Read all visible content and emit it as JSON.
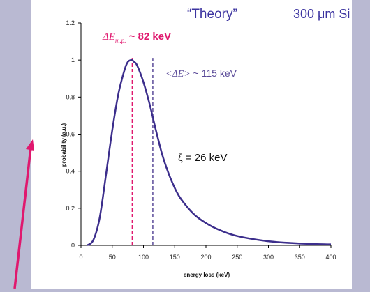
{
  "chart_data": {
    "type": "line",
    "title_left": "“Theory”",
    "title_right": "300 μm Si",
    "xlabel": "energy loss (keV)",
    "ylabel": "probability (a.u.)",
    "xlim": [
      0,
      400
    ],
    "ylim": [
      0,
      1.2
    ],
    "x_ticks": [
      0,
      50,
      100,
      150,
      200,
      250,
      300,
      350,
      400
    ],
    "y_ticks": [
      0,
      0.2,
      0.4,
      0.6,
      0.8,
      1,
      1.2
    ],
    "grid": false,
    "series": [
      {
        "color": "#3c2e8c",
        "x": [
          10,
          20,
          30,
          40,
          50,
          60,
          70,
          75,
          80,
          82,
          85,
          90,
          100,
          110,
          120,
          130,
          140,
          150,
          160,
          180,
          200,
          220,
          250,
          300,
          350,
          400
        ],
        "y": [
          0.0,
          0.03,
          0.15,
          0.38,
          0.62,
          0.82,
          0.95,
          0.99,
          1.0,
          1.0,
          0.99,
          0.97,
          0.88,
          0.76,
          0.62,
          0.49,
          0.39,
          0.31,
          0.25,
          0.17,
          0.12,
          0.085,
          0.05,
          0.022,
          0.01,
          0.005
        ]
      }
    ],
    "annotations": [
      {
        "id": "mp",
        "text_symbol": "ΔE",
        "text_sub": "m.p.",
        "text_value": " ~ 82 keV",
        "x": 82,
        "color": "#e0186e",
        "line_style": "dashed"
      },
      {
        "id": "mean",
        "text_symbol": "<ΔE>",
        "text_value": " ~ 115 keV",
        "x": 115,
        "color": "#5a4a98",
        "line_style": "dashed"
      },
      {
        "id": "xi",
        "text_symbol": "ξ",
        "text_value": " = 26 keV",
        "color": "#111111"
      }
    ],
    "colors": {
      "frame_bg": "#b9b9d2",
      "panel_bg": "#ffffff",
      "title": "#3c34a0",
      "arrow": "#e0186e"
    }
  }
}
